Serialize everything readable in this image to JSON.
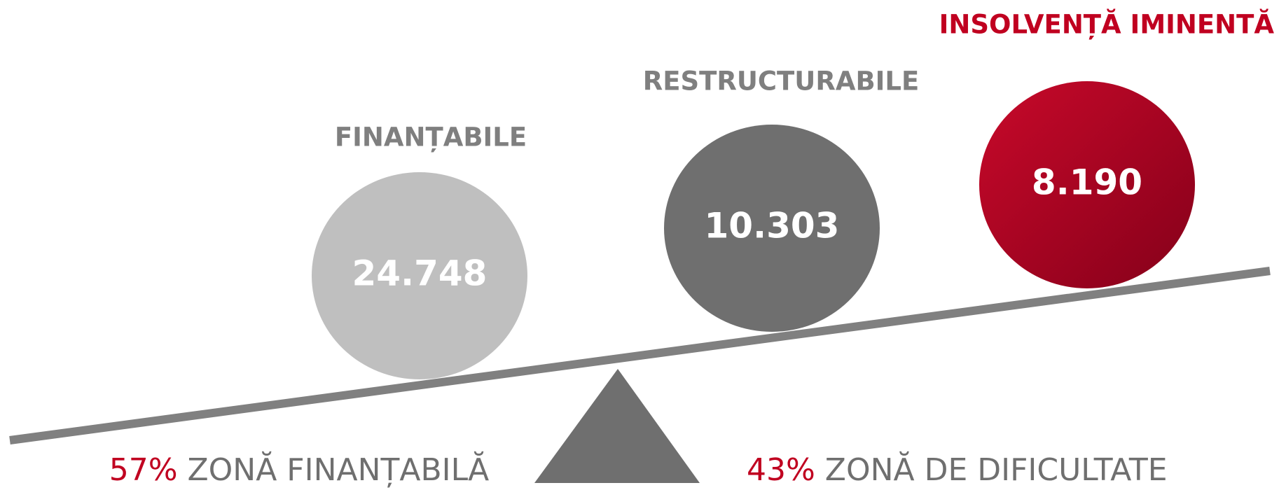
{
  "groups": [
    {
      "label": "FINANȚABILE",
      "value": "24.748"
    },
    {
      "label": "RESTRUCTURABILE",
      "value": "10.303"
    },
    {
      "label": "INSOLVENȚĂ IMINENTĂ",
      "value": "8.190"
    }
  ],
  "footer": {
    "left": {
      "percent": "57%",
      "text": "ZONĂ FINANȚABILĂ"
    },
    "right": {
      "percent": "43%",
      "text": "ZONĂ DE DIFICULTATE"
    }
  }
}
